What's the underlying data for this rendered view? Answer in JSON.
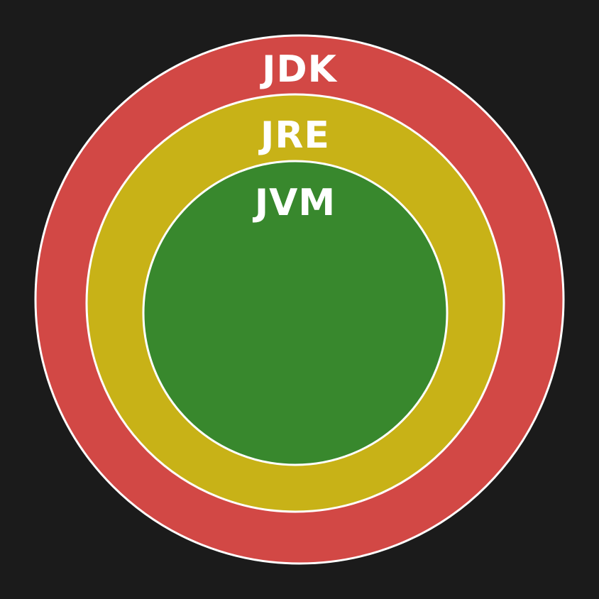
{
  "background_color": "#1b1b1b",
  "rings": [
    {
      "key": "jdk",
      "label": "JDK",
      "fill": "#d24845",
      "stroke": "#ffffff"
    },
    {
      "key": "jre",
      "label": "JRE",
      "fill": "#c8b217",
      "stroke": "#ffffff"
    },
    {
      "key": "jvm",
      "label": "JVM",
      "fill": "#38882d",
      "stroke": "#ffffff"
    }
  ]
}
